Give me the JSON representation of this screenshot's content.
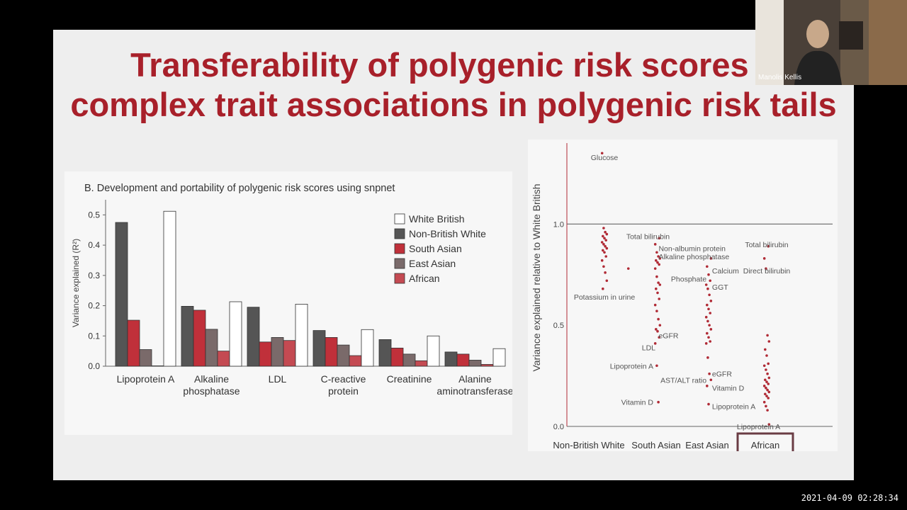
{
  "slide": {
    "title_line1": "Transferability of polygenic risk scores a",
    "title_line2": "complex trait associations in polygenic risk tails",
    "accent_color": "#a8202a"
  },
  "video": {
    "speaker_name": "Manolis Kellis"
  },
  "timestamp": "2021-04-09 02:28:34",
  "chart_data": [
    {
      "type": "bar",
      "title": "B. Development and portability of polygenic risk scores using snpnet",
      "ylabel": "Variance explained (R²)",
      "xlabel": "",
      "ylim": [
        0,
        0.55
      ],
      "yticks": [
        "0.0",
        "0.1",
        "0.2",
        "0.3",
        "0.4",
        "0.5"
      ],
      "categories": [
        "Lipoprotein A",
        "Alkaline phosphatase",
        "LDL",
        "C-reactive protein",
        "Creatinine",
        "Alanine aminotransferase"
      ],
      "category_lines": [
        [
          "Lipoprotein A"
        ],
        [
          "Alkaline",
          "phosphatase"
        ],
        [
          "LDL"
        ],
        [
          "C-reactive",
          "protein"
        ],
        [
          "Creatinine"
        ],
        [
          "Alanine",
          "aminotransferase"
        ]
      ],
      "legend_position": "top-right",
      "series": [
        {
          "name": "Non-British White",
          "color": "#555555",
          "values": [
            0.475,
            0.198,
            0.195,
            0.118,
            0.088,
            0.047
          ]
        },
        {
          "name": "South Asian",
          "color": "#c0303a",
          "values": [
            0.152,
            0.185,
            0.08,
            0.095,
            0.06,
            0.04
          ]
        },
        {
          "name": "East Asian",
          "color": "#7a6a6a",
          "values": [
            0.055,
            0.122,
            0.095,
            0.07,
            0.04,
            0.02
          ]
        },
        {
          "name": "African",
          "color": "#c44a52",
          "values": [
            0.0,
            0.05,
            0.085,
            0.035,
            0.018,
            0.006
          ]
        },
        {
          "name": "White British",
          "color": "#ffffff",
          "values": [
            0.512,
            0.213,
            0.205,
            0.121,
            0.1,
            0.058
          ]
        }
      ],
      "legend_order": [
        "White British",
        "Non-British White",
        "South Asian",
        "East Asian",
        "African"
      ]
    },
    {
      "type": "scatter",
      "ylabel": "Variance explained relative to White British",
      "xlabel": "",
      "ylim": [
        0,
        1.4
      ],
      "yticks": [
        "0.0",
        "0.5",
        "1.0"
      ],
      "reference_line": 1.0,
      "categories": [
        "Non-British White",
        "South Asian",
        "East Asian",
        "African"
      ],
      "highlighted_category": "African",
      "point_color": "#b02a35",
      "points": [
        [
          0,
          1.35
        ],
        [
          0,
          0.98
        ],
        [
          0,
          0.96
        ],
        [
          0,
          0.95
        ],
        [
          0,
          0.94
        ],
        [
          0,
          0.93
        ],
        [
          0,
          0.92
        ],
        [
          0,
          0.91
        ],
        [
          0,
          0.9
        ],
        [
          0,
          0.89
        ],
        [
          0,
          0.88
        ],
        [
          0,
          0.87
        ],
        [
          0,
          0.86
        ],
        [
          0,
          0.84
        ],
        [
          0,
          0.82
        ],
        [
          0,
          0.79
        ],
        [
          0,
          0.76
        ],
        [
          0,
          0.72
        ],
        [
          0,
          0.68
        ],
        [
          0.45,
          0.78
        ],
        [
          1,
          0.93
        ],
        [
          1,
          0.9
        ],
        [
          1,
          0.86
        ],
        [
          1,
          0.84
        ],
        [
          1,
          0.83
        ],
        [
          1,
          0.82
        ],
        [
          1,
          0.81
        ],
        [
          1,
          0.8
        ],
        [
          1,
          0.78
        ],
        [
          1,
          0.74
        ],
        [
          1,
          0.71
        ],
        [
          1,
          0.7
        ],
        [
          1,
          0.68
        ],
        [
          1,
          0.66
        ],
        [
          1,
          0.63
        ],
        [
          1,
          0.6
        ],
        [
          1,
          0.57
        ],
        [
          1,
          0.53
        ],
        [
          1,
          0.5
        ],
        [
          1,
          0.48
        ],
        [
          1,
          0.47
        ],
        [
          1,
          0.44
        ],
        [
          1,
          0.41
        ],
        [
          1,
          0.3
        ],
        [
          1,
          0.12
        ],
        [
          2,
          0.83
        ],
        [
          2,
          0.79
        ],
        [
          2,
          0.75
        ],
        [
          2,
          0.72
        ],
        [
          2,
          0.7
        ],
        [
          2,
          0.68
        ],
        [
          2,
          0.65
        ],
        [
          2,
          0.62
        ],
        [
          2,
          0.6
        ],
        [
          2,
          0.58
        ],
        [
          2,
          0.56
        ],
        [
          2,
          0.54
        ],
        [
          2,
          0.52
        ],
        [
          2,
          0.5
        ],
        [
          2,
          0.48
        ],
        [
          2,
          0.46
        ],
        [
          2,
          0.44
        ],
        [
          2,
          0.42
        ],
        [
          2,
          0.41
        ],
        [
          2,
          0.34
        ],
        [
          2,
          0.26
        ],
        [
          2,
          0.23
        ],
        [
          2,
          0.2
        ],
        [
          2,
          0.11
        ],
        [
          3,
          0.89
        ],
        [
          3,
          0.83
        ],
        [
          3,
          0.78
        ],
        [
          3,
          0.45
        ],
        [
          3,
          0.42
        ],
        [
          3,
          0.38
        ],
        [
          3,
          0.35
        ],
        [
          3,
          0.31
        ],
        [
          3,
          0.3
        ],
        [
          3,
          0.28
        ],
        [
          3,
          0.26
        ],
        [
          3,
          0.24
        ],
        [
          3,
          0.23
        ],
        [
          3,
          0.22
        ],
        [
          3,
          0.21
        ],
        [
          3,
          0.2
        ],
        [
          3,
          0.19
        ],
        [
          3,
          0.18
        ],
        [
          3,
          0.17
        ],
        [
          3,
          0.16
        ],
        [
          3,
          0.15
        ],
        [
          3,
          0.14
        ],
        [
          3,
          0.12
        ],
        [
          3,
          0.1
        ],
        [
          3,
          0.08
        ],
        [
          3,
          0.01
        ]
      ],
      "annotations": [
        {
          "text": "Glucose",
          "x": 0,
          "y": 1.33,
          "anchor": "middle"
        },
        {
          "text": "Total bilirubin",
          "x": 0.82,
          "y": 0.94,
          "anchor": "middle"
        },
        {
          "text": "Potassium in urine",
          "x": 0,
          "y": 0.64,
          "anchor": "middle"
        },
        {
          "text": "Non-albumin protein",
          "x": 1.02,
          "y": 0.88,
          "anchor": "start"
        },
        {
          "text": "Alkaline phosphatase",
          "x": 1.02,
          "y": 0.84,
          "anchor": "start"
        },
        {
          "text": "eGFR",
          "x": 1.02,
          "y": 0.45,
          "anchor": "start"
        },
        {
          "text": "LDL",
          "x": 0.96,
          "y": 0.39,
          "anchor": "end"
        },
        {
          "text": "Lipoprotein A",
          "x": 0.92,
          "y": 0.3,
          "anchor": "end"
        },
        {
          "text": "Vitamin D",
          "x": 0.92,
          "y": 0.12,
          "anchor": "end"
        },
        {
          "text": "Calcium",
          "x": 2.06,
          "y": 0.77,
          "anchor": "start"
        },
        {
          "text": "Phosphate",
          "x": 1.96,
          "y": 0.73,
          "anchor": "end"
        },
        {
          "text": "GGT",
          "x": 2.06,
          "y": 0.69,
          "anchor": "start"
        },
        {
          "text": "eGFR",
          "x": 2.06,
          "y": 0.26,
          "anchor": "start"
        },
        {
          "text": "AST/ALT ratio",
          "x": 1.96,
          "y": 0.23,
          "anchor": "end"
        },
        {
          "text": "Vitamin D",
          "x": 2.06,
          "y": 0.19,
          "anchor": "start"
        },
        {
          "text": "Lipoprotein A",
          "x": 2.06,
          "y": 0.1,
          "anchor": "start"
        },
        {
          "text": "Total bilirubin",
          "x": 3.0,
          "y": 0.9,
          "anchor": "middle"
        },
        {
          "text": "Direct bilirubin",
          "x": 3.0,
          "y": 0.77,
          "anchor": "middle"
        },
        {
          "text": "Lipoprotein A",
          "x": 2.86,
          "y": 0.0,
          "anchor": "middle"
        }
      ]
    }
  ]
}
